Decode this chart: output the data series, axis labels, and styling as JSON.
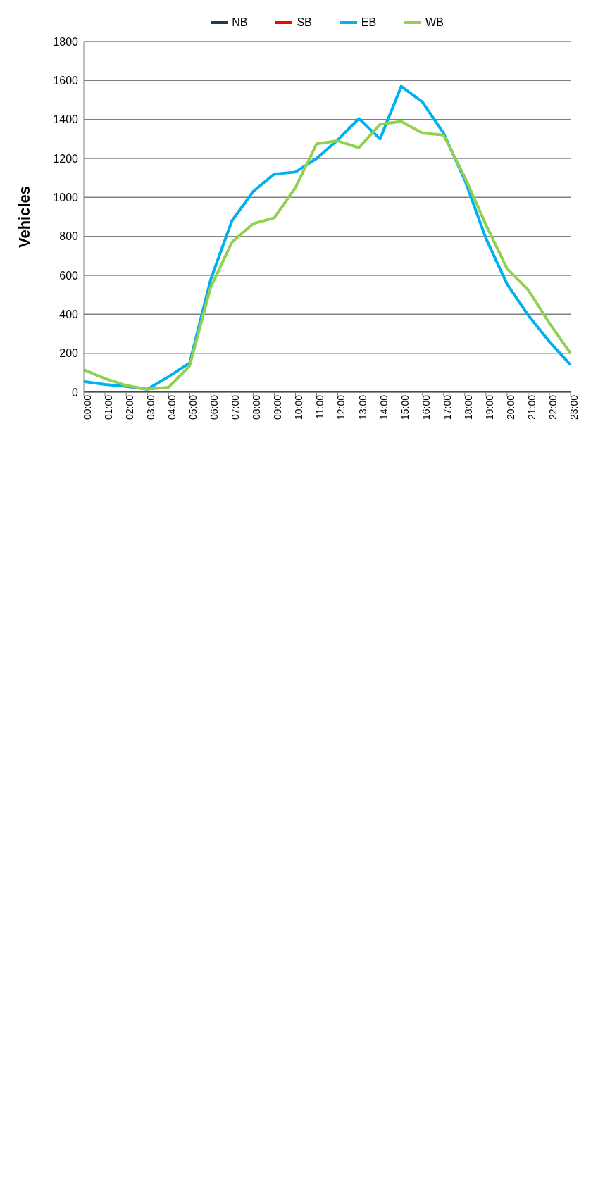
{
  "chart_data": {
    "type": "line",
    "ylabel": "Vehicles",
    "categories": [
      "00:00",
      "01:00",
      "02:00",
      "03:00",
      "04:00",
      "05:00",
      "06:00",
      "07:00",
      "08:00",
      "09:00",
      "10:00",
      "11:00",
      "12:00",
      "13:00",
      "14:00",
      "15:00",
      "16:00",
      "17:00",
      "18:00",
      "19:00",
      "20:00",
      "21:00",
      "22:00",
      "23:00"
    ],
    "series": [
      {
        "name": "NB",
        "color": "#1f3864",
        "values": [
          null,
          null,
          null,
          null,
          null,
          null,
          null,
          null,
          null,
          null,
          null,
          null,
          null,
          null,
          null,
          null,
          null,
          null,
          null,
          null,
          null,
          null,
          null,
          null
        ]
      },
      {
        "name": "SB",
        "color": "#ff0000",
        "values": [
          0,
          0,
          0,
          0,
          0,
          0,
          0,
          0,
          0,
          0,
          0,
          0,
          0,
          0,
          0,
          0,
          0,
          0,
          0,
          0,
          0,
          0,
          0,
          0
        ]
      },
      {
        "name": "EB",
        "color": "#00b0f0",
        "values": [
          55,
          40,
          30,
          15,
          80,
          150,
          580,
          880,
          1030,
          1120,
          1130,
          1200,
          1295,
          1405,
          1300,
          1570,
          1490,
          1330,
          1090,
          790,
          555,
          395,
          260,
          140
        ]
      },
      {
        "name": "WB",
        "color": "#92d050",
        "values": [
          115,
          70,
          35,
          15,
          25,
          135,
          540,
          770,
          865,
          895,
          1050,
          1275,
          1290,
          1255,
          1375,
          1390,
          1330,
          1320,
          1105,
          860,
          635,
          525,
          355,
          200
        ]
      }
    ],
    "ylim": [
      0,
      1800
    ],
    "yticks": [
      0,
      200,
      400,
      600,
      800,
      1000,
      1200,
      1400,
      1600,
      1800
    ],
    "grid": "y",
    "legend": "top",
    "marker": "none",
    "line_style": "solid"
  }
}
